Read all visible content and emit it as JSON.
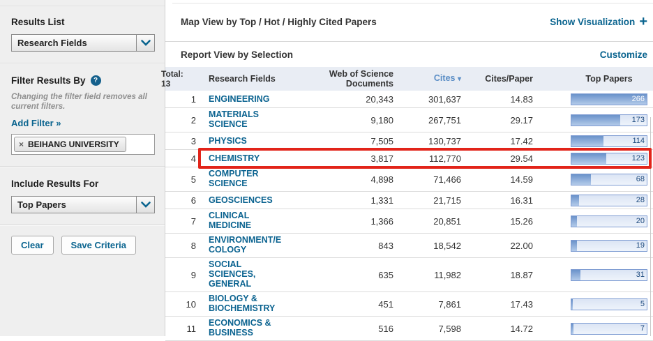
{
  "sidebar": {
    "results_list_heading": "Results List",
    "results_list_dropdown": "Research Fields",
    "filter_heading": "Filter Results By",
    "help_icon_glyph": "?",
    "filter_note": "Changing the filter field removes all current filters.",
    "add_filter_label": "Add Filter »",
    "filter_tag_remove_icon": "×",
    "filter_tag_label": "BEIHANG UNIVERSITY",
    "include_heading": "Include Results For",
    "include_dropdown": "Top Papers",
    "clear_button": "Clear",
    "save_button": "Save Criteria"
  },
  "main": {
    "map_view_title": "Map View by Top / Hot / Highly Cited Papers",
    "show_visualization_label": "Show Visualization",
    "show_visualization_icon": "+",
    "report_view_title": "Report View by Selection",
    "customize_label": "Customize"
  },
  "table": {
    "total_label": "Total:",
    "total_count": "13",
    "headers": {
      "research_fields": "Research Fields",
      "documents": "Web of Science Documents",
      "cites": "Cites",
      "sort_icon": "▾",
      "cites_per_paper": "Cites/Paper",
      "top_papers": "Top Papers"
    },
    "sorted_column": "Cites",
    "sort_direction": "descending",
    "top_papers_max": 266,
    "rows": [
      {
        "rank": "1",
        "field": "ENGINEERING",
        "documents": "20,343",
        "cites": "301,637",
        "cites_per_paper": "14.83",
        "top_papers": "266",
        "highlighted": false
      },
      {
        "rank": "2",
        "field": "MATERIALS\nSCIENCE",
        "documents": "9,180",
        "cites": "267,751",
        "cites_per_paper": "29.17",
        "top_papers": "173",
        "highlighted": false
      },
      {
        "rank": "3",
        "field": "PHYSICS",
        "documents": "7,505",
        "cites": "130,737",
        "cites_per_paper": "17.42",
        "top_papers": "114",
        "highlighted": false
      },
      {
        "rank": "4",
        "field": "CHEMISTRY",
        "documents": "3,817",
        "cites": "112,770",
        "cites_per_paper": "29.54",
        "top_papers": "123",
        "highlighted": true
      },
      {
        "rank": "5",
        "field": "COMPUTER\nSCIENCE",
        "documents": "4,898",
        "cites": "71,466",
        "cites_per_paper": "14.59",
        "top_papers": "68",
        "highlighted": false
      },
      {
        "rank": "6",
        "field": "GEOSCIENCES",
        "documents": "1,331",
        "cites": "21,715",
        "cites_per_paper": "16.31",
        "top_papers": "28",
        "highlighted": false
      },
      {
        "rank": "7",
        "field": "CLINICAL\nMEDICINE",
        "documents": "1,366",
        "cites": "20,851",
        "cites_per_paper": "15.26",
        "top_papers": "20",
        "highlighted": false
      },
      {
        "rank": "8",
        "field": "ENVIRONMENT/E\nCOLOGY",
        "documents": "843",
        "cites": "18,542",
        "cites_per_paper": "22.00",
        "top_papers": "19",
        "highlighted": false
      },
      {
        "rank": "9",
        "field": "SOCIAL\nSCIENCES,\nGENERAL",
        "documents": "635",
        "cites": "11,982",
        "cites_per_paper": "18.87",
        "top_papers": "31",
        "highlighted": false
      },
      {
        "rank": "10",
        "field": "BIOLOGY &\nBIOCHEMISTRY",
        "documents": "451",
        "cites": "7,861",
        "cites_per_paper": "17.43",
        "top_papers": "5",
        "highlighted": false
      },
      {
        "rank": "11",
        "field": "ECONOMICS &\nBUSINESS",
        "documents": "516",
        "cites": "7,598",
        "cites_per_paper": "14.72",
        "top_papers": "7",
        "highlighted": false
      }
    ]
  },
  "colors": {
    "accent_link": "#0a648f",
    "sorted_column_blue": "#5b8ec6",
    "highlight_red": "#e2241a",
    "bar_fill_blue": "#6a92ca",
    "bar_track_blue": "#dbe4f4",
    "sidebar_bg": "#efefef",
    "table_header_bg": "#e9edf4"
  }
}
